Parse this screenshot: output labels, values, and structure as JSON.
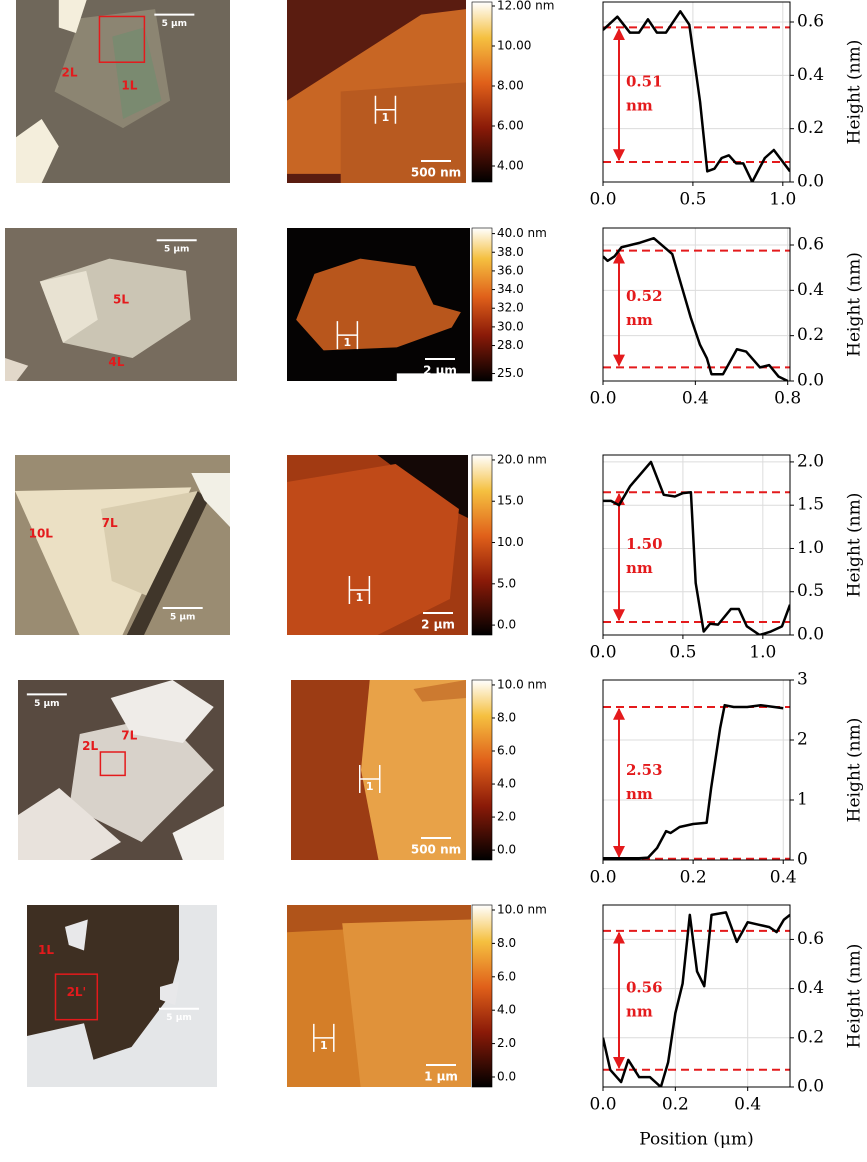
{
  "chart_data": [
    {
      "type": "line",
      "color": "#000000",
      "ref_color": "#e41a1c",
      "x": [
        0,
        0.08,
        0.15,
        0.2,
        0.25,
        0.3,
        0.35,
        0.43,
        0.48,
        0.54,
        0.58,
        0.62,
        0.66,
        0.7,
        0.74,
        0.78,
        0.83,
        0.9,
        0.95,
        1.04
      ],
      "values": [
        0.57,
        0.62,
        0.56,
        0.56,
        0.61,
        0.56,
        0.56,
        0.64,
        0.59,
        0.3,
        0.04,
        0.05,
        0.09,
        0.1,
        0.07,
        0.07,
        0.0,
        0.09,
        0.12,
        0.04
      ],
      "reference_lines": [
        0.58,
        0.075
      ],
      "annotation": [
        "0.51",
        "nm"
      ],
      "xlim": [
        0,
        1.04
      ],
      "ylim": [
        0,
        0.675
      ],
      "xticks": [
        {
          "value": 0,
          "label": "0.0"
        },
        0.5,
        {
          "value": 1,
          "label": "1.0"
        }
      ],
      "yticks": [
        {
          "value": 0,
          "label": "0.0"
        },
        0.2,
        0.4,
        0.6
      ],
      "ylabel": "Height (nm)",
      "grid": true
    },
    {
      "type": "line",
      "color": "#000000",
      "ref_color": "#e41a1c",
      "x": [
        0,
        0.02,
        0.05,
        0.08,
        0.16,
        0.22,
        0.3,
        0.34,
        0.38,
        0.42,
        0.45,
        0.47,
        0.52,
        0.58,
        0.62,
        0.68,
        0.72,
        0.76,
        0.8
      ],
      "values": [
        0.55,
        0.53,
        0.55,
        0.59,
        0.61,
        0.63,
        0.56,
        0.42,
        0.28,
        0.16,
        0.1,
        0.03,
        0.03,
        0.14,
        0.13,
        0.06,
        0.07,
        0.02,
        0.0
      ],
      "reference_lines": [
        0.575,
        0.06
      ],
      "annotation": [
        "0.52",
        "nm"
      ],
      "xlim": [
        0,
        0.81
      ],
      "ylim": [
        0,
        0.675
      ],
      "xticks": [
        {
          "value": 0,
          "label": "0.0"
        },
        0.4,
        0.8
      ],
      "yticks": [
        {
          "value": 0,
          "label": "0.0"
        },
        0.2,
        0.4,
        0.6
      ],
      "ylabel": "Height (nm)",
      "grid": true
    },
    {
      "type": "line",
      "color": "#000000",
      "ref_color": "#e41a1c",
      "x": [
        0,
        0.05,
        0.1,
        0.17,
        0.3,
        0.38,
        0.45,
        0.5,
        0.55,
        0.58,
        0.63,
        0.67,
        0.72,
        0.8,
        0.85,
        0.9,
        0.98,
        1.05,
        1.12,
        1.17
      ],
      "values": [
        1.55,
        1.55,
        1.5,
        1.72,
        2.0,
        1.62,
        1.6,
        1.64,
        1.65,
        0.6,
        0.04,
        0.13,
        0.12,
        0.3,
        0.3,
        0.1,
        0.0,
        0.04,
        0.1,
        0.35
      ],
      "reference_lines": [
        1.65,
        0.15
      ],
      "annotation": [
        "1.50",
        "nm"
      ],
      "xlim": [
        0,
        1.17
      ],
      "ylim": [
        0,
        2.08
      ],
      "xticks": [
        {
          "value": 0,
          "label": "0.0"
        },
        0.5,
        {
          "value": 1,
          "label": "1.0"
        }
      ],
      "yticks": [
        {
          "value": 0,
          "label": "0.0"
        },
        0.5,
        {
          "value": 1,
          "label": "1.0"
        },
        1.5,
        {
          "value": 2,
          "label": "2.0"
        }
      ],
      "ylabel": "Height (nm)",
      "grid": true
    },
    {
      "type": "line",
      "color": "#000000",
      "ref_color": "#e41a1c",
      "x": [
        0,
        0.04,
        0.08,
        0.1,
        0.12,
        0.14,
        0.15,
        0.17,
        0.2,
        0.23,
        0.24,
        0.26,
        0.27,
        0.29,
        0.32,
        0.35,
        0.38,
        0.4
      ],
      "values": [
        0.03,
        0.03,
        0.03,
        0.04,
        0.2,
        0.48,
        0.45,
        0.55,
        0.6,
        0.62,
        1.2,
        2.2,
        2.58,
        2.55,
        2.55,
        2.58,
        2.55,
        2.53
      ],
      "reference_lines": [
        2.55,
        0.02
      ],
      "annotation": [
        "2.53",
        "nm"
      ],
      "xlim": [
        0,
        0.415
      ],
      "ylim": [
        0,
        3
      ],
      "xticks": [
        {
          "value": 0,
          "label": "0.0"
        },
        0.2,
        0.4
      ],
      "yticks": [
        0,
        1,
        2,
        3
      ],
      "ylabel": "Height (nm)",
      "grid": true
    },
    {
      "type": "line",
      "color": "#000000",
      "ref_color": "#e41a1c",
      "x": [
        0,
        0.02,
        0.05,
        0.07,
        0.1,
        0.13,
        0.16,
        0.18,
        0.2,
        0.22,
        0.24,
        0.26,
        0.28,
        0.3,
        0.34,
        0.37,
        0.4,
        0.43,
        0.46,
        0.48,
        0.5,
        0.517
      ],
      "values": [
        0.2,
        0.07,
        0.02,
        0.11,
        0.04,
        0.04,
        0.0,
        0.1,
        0.3,
        0.42,
        0.7,
        0.47,
        0.41,
        0.7,
        0.71,
        0.59,
        0.67,
        0.66,
        0.65,
        0.63,
        0.68,
        0.7
      ],
      "reference_lines": [
        0.635,
        0.07
      ],
      "annotation": [
        "0.56",
        "nm"
      ],
      "xlim": [
        0,
        0.517
      ],
      "ylim": [
        0,
        0.74
      ],
      "xticks": [
        {
          "value": 0,
          "label": "0.0"
        },
        0.2,
        0.4
      ],
      "yticks": [
        {
          "value": 0,
          "label": "0.0"
        },
        0.2,
        0.4,
        0.6
      ],
      "ylabel": "Height (nm)",
      "xlabel": "Position (μm)",
      "grid": true
    }
  ],
  "panels": [
    {
      "optical": {
        "labels": [
          "2L",
          "1L"
        ],
        "scale_bar": "5 μm"
      },
      "afm": {
        "scale_bar": "500 nm",
        "profile_label": "1"
      },
      "colorbar": {
        "lim": [
          3.2,
          12.2
        ],
        "ticks": [
          {
            "value": 12,
            "label": "12.00 nm"
          },
          {
            "value": 10,
            "label": "10.00"
          },
          {
            "value": 8,
            "label": "8.00"
          },
          {
            "value": 6,
            "label": "6.00"
          },
          {
            "value": 4,
            "label": "4.00"
          }
        ]
      }
    },
    {
      "optical": {
        "labels": [
          "5L",
          "4L"
        ],
        "scale_bar": "5 μm"
      },
      "afm": {
        "scale_bar": "2 μm",
        "profile_label": "1"
      },
      "colorbar": {
        "lim": [
          24.2,
          40.6
        ],
        "ticks": [
          {
            "value": 40,
            "label": "40.0 nm"
          },
          {
            "value": 38,
            "label": "38.0"
          },
          {
            "value": 36,
            "label": "36.0"
          },
          {
            "value": 34,
            "label": "34.0"
          },
          {
            "value": 32,
            "label": "32.0"
          },
          {
            "value": 30,
            "label": "30.0"
          },
          {
            "value": 28,
            "label": "28.0"
          },
          {
            "value": 25,
            "label": "25.0"
          }
        ]
      }
    },
    {
      "optical": {
        "labels": [
          "10L",
          "7L"
        ],
        "scale_bar": "5 μm"
      },
      "afm": {
        "scale_bar": "2 μm",
        "profile_label": "1"
      },
      "colorbar": {
        "lim": [
          -1.2,
          20.6
        ],
        "ticks": [
          {
            "value": 20,
            "label": "20.0 nm"
          },
          {
            "value": 15,
            "label": "15.0"
          },
          {
            "value": 10,
            "label": "10.0"
          },
          {
            "value": 5,
            "label": "5.0"
          },
          {
            "value": 0,
            "label": "0.0"
          }
        ]
      }
    },
    {
      "optical": {
        "labels": [
          "2L",
          "7L"
        ],
        "scale_bar": "5 μm"
      },
      "afm": {
        "scale_bar": "500 nm",
        "profile_label": "1"
      },
      "colorbar": {
        "lim": [
          -0.6,
          10.3
        ],
        "ticks": [
          {
            "value": 10,
            "label": "10.0 nm"
          },
          {
            "value": 8,
            "label": "8.0"
          },
          {
            "value": 6,
            "label": "6.0"
          },
          {
            "value": 4,
            "label": "4.0"
          },
          {
            "value": 2,
            "label": "2.0"
          },
          {
            "value": 0,
            "label": "0.0"
          }
        ]
      }
    },
    {
      "optical": {
        "labels": [
          "1L",
          "2L'"
        ],
        "scale_bar": "5 μm"
      },
      "afm": {
        "scale_bar": "1 μm",
        "profile_label": "1"
      },
      "colorbar": {
        "lim": [
          -0.6,
          10.3
        ],
        "ticks": [
          {
            "value": 10,
            "label": "10.0 nm"
          },
          {
            "value": 8,
            "label": "8.0"
          },
          {
            "value": 6,
            "label": "6.0"
          },
          {
            "value": 4,
            "label": "4.0"
          },
          {
            "value": 2,
            "label": "2.0"
          },
          {
            "value": 0,
            "label": "0.0"
          }
        ]
      }
    }
  ]
}
